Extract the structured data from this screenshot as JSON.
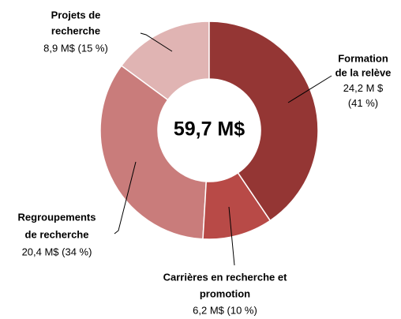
{
  "chart_data": {
    "type": "donut",
    "center_label": "59,7 M$",
    "categories": [
      [
        "Formation",
        "de la relève"
      ],
      [
        "Carrières en recherche et",
        "promotion"
      ],
      [
        "Regroupements",
        "de recherche"
      ],
      [
        "Projets de",
        "recherche"
      ]
    ],
    "values": [
      24.2,
      6.2,
      20.4,
      8.9
    ],
    "value_labels": [
      "24,2 M $ (41 %)",
      "6,2 M$ (10 %)",
      "20,4 M$ (34 %)",
      "8,9 M$ (15 %)"
    ],
    "colors": [
      "#943634",
      "#b84a47",
      "#c97c7b",
      "#e0b4b3"
    ]
  }
}
